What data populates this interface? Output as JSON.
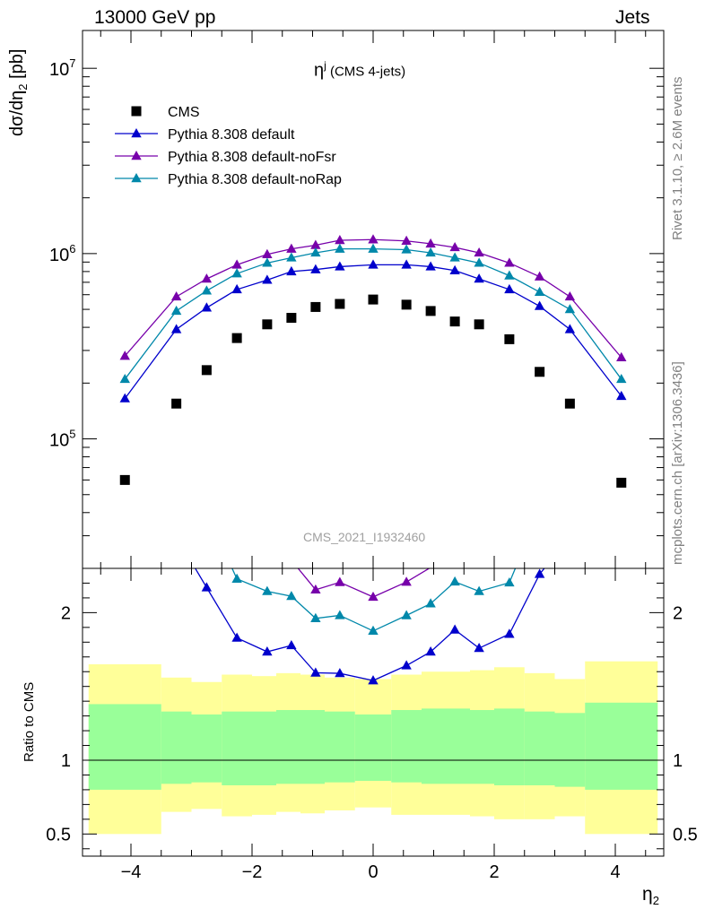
{
  "header": {
    "left": "13000 GeV pp",
    "right": "Jets",
    "side_top": "Rivet 3.1.10, ≥ 2.6M events",
    "side_bottom": "mcplots.cern.ch [arXiv:1306.3436]"
  },
  "chart_data": {
    "type": "scatter",
    "title_main": "η",
    "title_sup": "j",
    "title_rest": " (CMS 4-jets)",
    "watermark": "CMS_2021_I1932460",
    "ylabel_main": "dσ/dη",
    "ylabel_sub": "2",
    "ylabel_unit": " [pb]",
    "xlabel_main": "η",
    "xlabel_sub": "2",
    "ratio_ylabel": "Ratio to CMS",
    "xlim": [
      -4.8,
      4.8
    ],
    "ylim": [
      20000,
      16000000
    ],
    "ylog": true,
    "ratio_ylim": [
      0.35,
      2.3
    ],
    "x_ticks": [
      "−4",
      "−2",
      "0",
      "2",
      "4"
    ],
    "y_ticks": [
      {
        "base": "10",
        "exp": "5",
        "value": 100000
      },
      {
        "base": "10",
        "exp": "6",
        "value": 1000000
      },
      {
        "base": "10",
        "exp": "7",
        "value": 10000000
      }
    ],
    "ratio_ticks": [
      "0.5",
      "1",
      "2"
    ],
    "ratio_tick_values": [
      0.5,
      1,
      2
    ],
    "legend_position": "top-left",
    "x": [
      -4.1,
      -3.25,
      -2.75,
      -2.25,
      -1.75,
      -1.35,
      -0.95,
      -0.55,
      0.0,
      0.55,
      0.95,
      1.35,
      1.75,
      2.25,
      2.75,
      3.25,
      4.1
    ],
    "bin_edges": [
      -4.7,
      -3.5,
      -3.0,
      -2.5,
      -2.0,
      -1.6,
      -1.2,
      -0.8,
      -0.3,
      0.3,
      0.8,
      1.2,
      1.6,
      2.0,
      2.5,
      3.0,
      3.5,
      4.7
    ],
    "series": [
      {
        "name": "CMS",
        "kind": "data",
        "color": "#000000",
        "values": [
          60000,
          155000,
          235000,
          350000,
          415000,
          450000,
          515000,
          535000,
          565000,
          530000,
          490000,
          430000,
          415000,
          345000,
          230000,
          155000,
          58000
        ]
      },
      {
        "name": "Pythia 8.308 default",
        "kind": "mc",
        "color": "#0000cc",
        "values": [
          165000,
          390000,
          510000,
          640000,
          720000,
          800000,
          820000,
          850000,
          870000,
          870000,
          850000,
          810000,
          730000,
          640000,
          520000,
          390000,
          170000
        ]
      },
      {
        "name": "Pythia 8.308 default-noFsr",
        "kind": "mc",
        "color": "#7700aa",
        "values": [
          280000,
          585000,
          730000,
          870000,
          990000,
          1060000,
          1110000,
          1180000,
          1190000,
          1170000,
          1130000,
          1080000,
          1010000,
          890000,
          750000,
          585000,
          275000
        ]
      },
      {
        "name": "Pythia 8.308 default-noRap",
        "kind": "mc",
        "color": "#0088aa",
        "values": [
          210000,
          490000,
          630000,
          780000,
          890000,
          950000,
          1010000,
          1060000,
          1060000,
          1050000,
          1010000,
          950000,
          890000,
          760000,
          620000,
          500000,
          210000
        ]
      }
    ],
    "ratio_band_inner": {
      "color": "#99ff99",
      "lo": [
        0.8,
        0.84,
        0.85,
        0.83,
        0.83,
        0.84,
        0.84,
        0.85,
        0.86,
        0.85,
        0.84,
        0.84,
        0.84,
        0.83,
        0.83,
        0.82,
        0.8
      ],
      "hi": [
        1.38,
        1.33,
        1.31,
        1.33,
        1.33,
        1.34,
        1.34,
        1.33,
        1.31,
        1.34,
        1.35,
        1.35,
        1.34,
        1.35,
        1.33,
        1.32,
        1.39
      ]
    },
    "ratio_band_outer": {
      "color": "#ffff99",
      "lo": [
        0.5,
        0.65,
        0.67,
        0.62,
        0.63,
        0.65,
        0.64,
        0.66,
        0.68,
        0.63,
        0.63,
        0.63,
        0.62,
        0.6,
        0.6,
        0.62,
        0.5
      ],
      "hi": [
        1.65,
        1.56,
        1.53,
        1.58,
        1.57,
        1.59,
        1.58,
        1.56,
        1.55,
        1.58,
        1.6,
        1.6,
        1.61,
        1.63,
        1.59,
        1.55,
        1.67
      ]
    }
  }
}
